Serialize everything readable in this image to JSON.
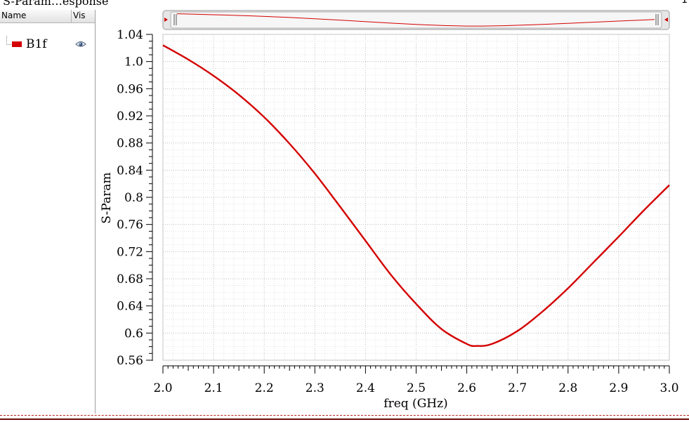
{
  "window": {
    "title": "S-Param…esponse",
    "corner_mark": "1"
  },
  "legend": {
    "header_name": "Name",
    "header_vis": "Vis",
    "items": [
      {
        "name": "B1f",
        "color": "#d40000",
        "visible_icon": "eye-icon"
      }
    ]
  },
  "chart_data": {
    "type": "line",
    "xlabel": "freq (GHz)",
    "ylabel": "S-Param",
    "xlim": [
      2.0,
      3.0
    ],
    "ylim": [
      0.56,
      1.04
    ],
    "x_ticks": [
      "2.0",
      "2.1",
      "2.2",
      "2.3",
      "2.4",
      "2.5",
      "2.6",
      "2.7",
      "2.8",
      "2.9",
      "3.0"
    ],
    "y_ticks": [
      "0.56",
      "0.6",
      "0.64",
      "0.68",
      "0.72",
      "0.76",
      "0.8",
      "0.84",
      "0.88",
      "0.92",
      "0.96",
      "1.0",
      "1.04"
    ],
    "grid": true,
    "series": [
      {
        "name": "B1f",
        "color": "#d40000",
        "x": [
          2.0,
          2.05,
          2.1,
          2.15,
          2.2,
          2.25,
          2.3,
          2.35,
          2.4,
          2.45,
          2.5,
          2.55,
          2.6,
          2.62,
          2.65,
          2.7,
          2.75,
          2.8,
          2.85,
          2.9,
          2.95,
          3.0
        ],
        "y": [
          1.024,
          1.003,
          0.979,
          0.951,
          0.918,
          0.879,
          0.835,
          0.786,
          0.736,
          0.686,
          0.643,
          0.606,
          0.584,
          0.581,
          0.584,
          0.603,
          0.632,
          0.666,
          0.704,
          0.742,
          0.781,
          0.818
        ]
      }
    ]
  }
}
